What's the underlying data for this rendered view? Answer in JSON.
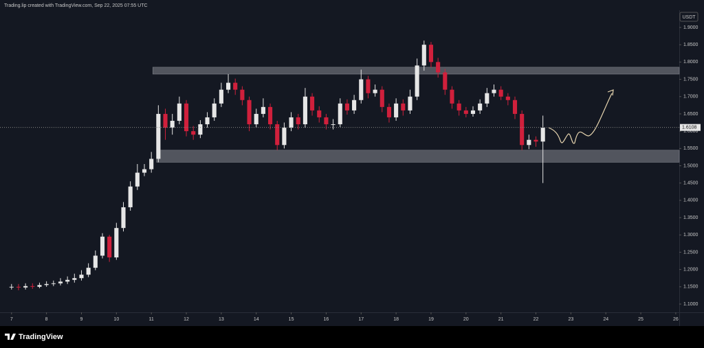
{
  "chart_data": {
    "type": "candlestick",
    "title": "Trading.lip created with TradingView.com, Sep 22, 2025 07:55 UTC",
    "currency": "USDT",
    "brand": "TradingView",
    "up_color": "#e6e6e6",
    "down_color": "#d0203c",
    "x": [
      7,
      7.2,
      7.4,
      7.6,
      7.8,
      8,
      8.2,
      8.4,
      8.6,
      8.8,
      9,
      9.2,
      9.4,
      9.6,
      9.8,
      10,
      10.2,
      10.4,
      10.6,
      10.8,
      11,
      11.2,
      11.4,
      11.6,
      11.8,
      12,
      12.2,
      12.4,
      12.6,
      12.8,
      13,
      13.2,
      13.4,
      13.6,
      13.8,
      14,
      14.2,
      14.4,
      14.6,
      14.8,
      15,
      15.2,
      15.4,
      15.6,
      15.8,
      16,
      16.2,
      16.4,
      16.6,
      16.8,
      17,
      17.2,
      17.4,
      17.6,
      17.8,
      18,
      18.2,
      18.4,
      18.6,
      18.8,
      19,
      19.2,
      19.4,
      19.6,
      19.8,
      20,
      20.2,
      20.4,
      20.6,
      20.8,
      21,
      21.2,
      21.4,
      21.6,
      21.8,
      22,
      22.2
    ],
    "open": [
      1.15,
      1.15,
      1.148,
      1.152,
      1.15,
      1.155,
      1.158,
      1.16,
      1.165,
      1.17,
      1.175,
      1.185,
      1.205,
      1.24,
      1.295,
      1.235,
      1.32,
      1.38,
      1.44,
      1.48,
      1.49,
      1.52,
      1.65,
      1.61,
      1.63,
      1.68,
      1.6,
      1.59,
      1.62,
      1.64,
      1.68,
      1.72,
      1.74,
      1.72,
      1.69,
      1.62,
      1.65,
      1.67,
      1.62,
      1.56,
      1.61,
      1.64,
      1.62,
      1.7,
      1.66,
      1.64,
      1.62,
      1.62,
      1.68,
      1.66,
      1.69,
      1.75,
      1.71,
      1.72,
      1.67,
      1.64,
      1.68,
      1.66,
      1.7,
      1.79,
      1.85,
      1.8,
      1.77,
      1.72,
      1.68,
      1.66,
      1.65,
      1.66,
      1.68,
      1.71,
      1.72,
      1.7,
      1.69,
      1.65,
      1.56,
      1.575,
      1.57
    ],
    "high": [
      1.158,
      1.158,
      1.16,
      1.16,
      1.162,
      1.166,
      1.168,
      1.175,
      1.18,
      1.188,
      1.198,
      1.218,
      1.255,
      1.305,
      1.3,
      1.335,
      1.395,
      1.455,
      1.505,
      1.505,
      1.54,
      1.675,
      1.665,
      1.65,
      1.7,
      1.69,
      1.615,
      1.632,
      1.655,
      1.695,
      1.74,
      1.765,
      1.752,
      1.73,
      1.7,
      1.665,
      1.695,
      1.68,
      1.63,
      1.625,
      1.655,
      1.65,
      1.725,
      1.71,
      1.672,
      1.65,
      1.635,
      1.695,
      1.692,
      1.705,
      1.778,
      1.76,
      1.735,
      1.73,
      1.68,
      1.695,
      1.692,
      1.72,
      1.81,
      1.862,
      1.858,
      1.812,
      1.78,
      1.73,
      1.69,
      1.67,
      1.672,
      1.692,
      1.725,
      1.735,
      1.73,
      1.71,
      1.7,
      1.66,
      1.59,
      1.585,
      1.645
    ],
    "low": [
      1.142,
      1.14,
      1.142,
      1.144,
      1.146,
      1.15,
      1.152,
      1.154,
      1.158,
      1.162,
      1.168,
      1.178,
      1.198,
      1.232,
      1.222,
      1.228,
      1.31,
      1.37,
      1.43,
      1.47,
      1.48,
      1.51,
      1.575,
      1.59,
      1.62,
      1.585,
      1.575,
      1.58,
      1.61,
      1.63,
      1.67,
      1.71,
      1.705,
      1.675,
      1.6,
      1.61,
      1.64,
      1.605,
      1.545,
      1.55,
      1.6,
      1.605,
      1.61,
      1.645,
      1.625,
      1.605,
      1.605,
      1.612,
      1.648,
      1.65,
      1.68,
      1.695,
      1.7,
      1.655,
      1.625,
      1.63,
      1.645,
      1.65,
      1.69,
      1.775,
      1.785,
      1.755,
      1.705,
      1.665,
      1.645,
      1.64,
      1.642,
      1.65,
      1.67,
      1.7,
      1.69,
      1.675,
      1.635,
      1.545,
      1.548,
      1.555,
      1.45
    ],
    "close": [
      1.15,
      1.148,
      1.152,
      1.15,
      1.155,
      1.158,
      1.16,
      1.165,
      1.17,
      1.175,
      1.185,
      1.205,
      1.24,
      1.295,
      1.235,
      1.32,
      1.38,
      1.44,
      1.48,
      1.49,
      1.52,
      1.65,
      1.61,
      1.63,
      1.68,
      1.6,
      1.59,
      1.62,
      1.64,
      1.68,
      1.72,
      1.74,
      1.72,
      1.69,
      1.62,
      1.65,
      1.67,
      1.62,
      1.56,
      1.61,
      1.64,
      1.62,
      1.7,
      1.66,
      1.64,
      1.62,
      1.62,
      1.68,
      1.66,
      1.69,
      1.75,
      1.71,
      1.72,
      1.67,
      1.64,
      1.68,
      1.66,
      1.7,
      1.79,
      1.85,
      1.8,
      1.77,
      1.72,
      1.68,
      1.66,
      1.65,
      1.66,
      1.68,
      1.71,
      1.72,
      1.7,
      1.69,
      1.65,
      1.56,
      1.575,
      1.57,
      1.61
    ],
    "last_price": {
      "value": 1.6108,
      "label": "1.6108"
    },
    "zones": [
      {
        "from": 1.765,
        "to": 1.785,
        "start": 11.04
      },
      {
        "from": 1.51,
        "to": 1.545,
        "start": 11.15
      }
    ],
    "xlim": [
      6.67,
      26.1
    ],
    "xticks": [
      7,
      8,
      9,
      10,
      11,
      12,
      13,
      14,
      15,
      16,
      17,
      18,
      19,
      20,
      21,
      22,
      23,
      24,
      25,
      26
    ],
    "ylim": [
      1.0762,
      1.9496
    ],
    "yticks": [
      {
        "value": 1.1,
        "label": "1.1000"
      },
      {
        "value": 1.15,
        "label": "1.1500"
      },
      {
        "value": 1.2,
        "label": "1.2000"
      },
      {
        "value": 1.25,
        "label": "1.2500"
      },
      {
        "value": 1.3,
        "label": "1.3000"
      },
      {
        "value": 1.35,
        "label": "1.3500"
      },
      {
        "value": 1.4,
        "label": "1.4000"
      },
      {
        "value": 1.45,
        "label": "1.4500"
      },
      {
        "value": 1.5,
        "label": "1.5000"
      },
      {
        "value": 1.55,
        "label": "1.5500"
      },
      {
        "value": 1.6,
        "label": "1.6000"
      },
      {
        "value": 1.65,
        "label": "1.6500"
      },
      {
        "value": 1.7,
        "label": "1.7000"
      },
      {
        "value": 1.75,
        "label": "1.7500"
      },
      {
        "value": 1.8,
        "label": "1.8000"
      },
      {
        "value": 1.85,
        "label": "1.8500"
      },
      {
        "value": 1.9,
        "label": "1.9000"
      }
    ]
  }
}
